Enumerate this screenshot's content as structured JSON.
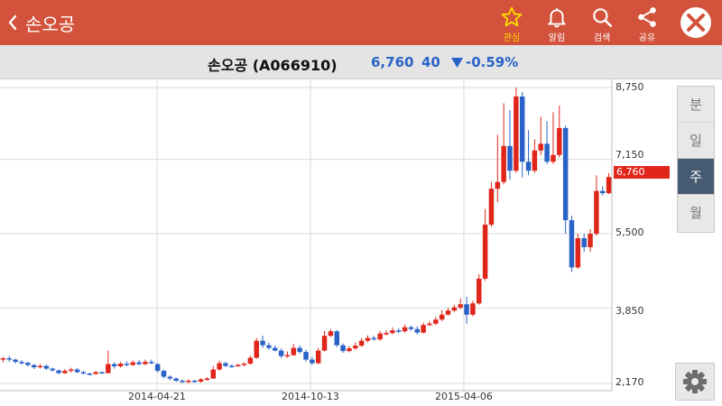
{
  "header": {
    "title": "손오공",
    "actions": [
      {
        "icon": "star-icon",
        "label": "관심",
        "active": true
      },
      {
        "icon": "bell-icon",
        "label": "알림",
        "active": false
      },
      {
        "icon": "search-icon",
        "label": "검색",
        "active": false
      },
      {
        "icon": "share-icon",
        "label": "공유",
        "active": false
      }
    ]
  },
  "stock": {
    "name": "손오공 (A066910)",
    "price": "6,760",
    "change": "40",
    "change_pct": "-0.59%",
    "color_down": "#2a63c7",
    "color_up": "#e0261b"
  },
  "periods": [
    "분",
    "일",
    "주",
    "월"
  ],
  "active_period": "주",
  "chart_data": {
    "type": "candlestick",
    "y_ticks": [
      "8,750",
      "7,150",
      "5,500",
      "3,850",
      "2,170"
    ],
    "x_ticks": [
      "2014-04-21",
      "2014-10-13",
      "2015-04-06"
    ],
    "ylim": [
      2170,
      8750
    ],
    "current_price_label": "6,760",
    "grid": true,
    "candles": [
      [
        2700,
        2730,
        2640,
        2760
      ],
      [
        2730,
        2700,
        2650,
        2780
      ],
      [
        2700,
        2650,
        2610,
        2720
      ],
      [
        2650,
        2630,
        2590,
        2690
      ],
      [
        2630,
        2580,
        2550,
        2650
      ],
      [
        2580,
        2530,
        2490,
        2600
      ],
      [
        2530,
        2560,
        2500,
        2600
      ],
      [
        2560,
        2500,
        2470,
        2590
      ],
      [
        2500,
        2460,
        2430,
        2520
      ],
      [
        2460,
        2400,
        2380,
        2480
      ],
      [
        2400,
        2450,
        2380,
        2490
      ],
      [
        2450,
        2480,
        2410,
        2520
      ],
      [
        2480,
        2420,
        2400,
        2510
      ],
      [
        2420,
        2390,
        2370,
        2450
      ],
      [
        2390,
        2380,
        2350,
        2410
      ],
      [
        2380,
        2420,
        2360,
        2450
      ],
      [
        2420,
        2400,
        2380,
        2440
      ],
      [
        2400,
        2600,
        2390,
        2900
      ],
      [
        2600,
        2550,
        2500,
        2640
      ],
      [
        2550,
        2610,
        2520,
        2650
      ],
      [
        2610,
        2580,
        2550,
        2660
      ],
      [
        2580,
        2640,
        2560,
        2680
      ],
      [
        2640,
        2600,
        2570,
        2690
      ],
      [
        2600,
        2650,
        2580,
        2700
      ],
      [
        2650,
        2640,
        2600,
        2700
      ],
      [
        2600,
        2450,
        2420,
        2620
      ],
      [
        2450,
        2320,
        2280,
        2480
      ],
      [
        2320,
        2280,
        2240,
        2350
      ],
      [
        2280,
        2230,
        2200,
        2300
      ],
      [
        2230,
        2200,
        2180,
        2260
      ],
      [
        2200,
        2230,
        2180,
        2260
      ],
      [
        2230,
        2210,
        2190,
        2250
      ],
      [
        2210,
        2260,
        2190,
        2290
      ],
      [
        2260,
        2280,
        2230,
        2310
      ],
      [
        2280,
        2480,
        2270,
        2560
      ],
      [
        2480,
        2620,
        2460,
        2680
      ],
      [
        2620,
        2560,
        2530,
        2650
      ],
      [
        2560,
        2550,
        2520,
        2600
      ],
      [
        2550,
        2580,
        2540,
        2610
      ],
      [
        2580,
        2610,
        2550,
        2640
      ],
      [
        2610,
        2740,
        2590,
        2790
      ],
      [
        2740,
        3120,
        2720,
        3180
      ],
      [
        3120,
        3020,
        2960,
        3230
      ],
      [
        3020,
        2960,
        2920,
        3080
      ],
      [
        2960,
        2900,
        2880,
        3020
      ],
      [
        2900,
        2780,
        2740,
        2950
      ],
      [
        2780,
        2800,
        2740,
        2880
      ],
      [
        2800,
        2960,
        2780,
        3050
      ],
      [
        2960,
        2870,
        2830,
        3020
      ],
      [
        2870,
        2700,
        2660,
        2920
      ],
      [
        2700,
        2620,
        2580,
        2760
      ],
      [
        2620,
        2900,
        2600,
        2960
      ],
      [
        2900,
        3230,
        2880,
        3340
      ],
      [
        3230,
        3330,
        3200,
        3380
      ],
      [
        3330,
        3020,
        2980,
        3360
      ],
      [
        3020,
        2890,
        2850,
        3060
      ],
      [
        2890,
        2950,
        2860,
        3000
      ],
      [
        2950,
        3010,
        2920,
        3080
      ],
      [
        3010,
        3120,
        2980,
        3180
      ],
      [
        3120,
        3180,
        3080,
        3240
      ],
      [
        3180,
        3150,
        3120,
        3230
      ],
      [
        3150,
        3280,
        3120,
        3340
      ],
      [
        3280,
        3290,
        3240,
        3350
      ],
      [
        3290,
        3350,
        3260,
        3420
      ],
      [
        3350,
        3330,
        3290,
        3400
      ],
      [
        3330,
        3420,
        3300,
        3480
      ],
      [
        3420,
        3380,
        3340,
        3460
      ],
      [
        3380,
        3300,
        3260,
        3440
      ],
      [
        3300,
        3470,
        3280,
        3520
      ],
      [
        3470,
        3500,
        3440,
        3550
      ],
      [
        3500,
        3590,
        3470,
        3650
      ],
      [
        3590,
        3700,
        3560,
        3800
      ],
      [
        3700,
        3790,
        3680,
        3850
      ],
      [
        3790,
        3860,
        3760,
        3920
      ],
      [
        3860,
        3930,
        3820,
        4060
      ],
      [
        3930,
        3700,
        3500,
        4100
      ],
      [
        3700,
        3950,
        3660,
        4010
      ],
      [
        3950,
        4500,
        3920,
        4600
      ],
      [
        4500,
        5700,
        4450,
        6050
      ],
      [
        5700,
        6500,
        5650,
        6650
      ],
      [
        6500,
        6650,
        6200,
        7700
      ],
      [
        6650,
        7450,
        6600,
        8400
      ],
      [
        7450,
        6900,
        6700,
        8250
      ],
      [
        6900,
        8550,
        6850,
        8750
      ],
      [
        8550,
        7100,
        6750,
        8650
      ],
      [
        7100,
        6900,
        6800,
        7800
      ],
      [
        6900,
        7350,
        6850,
        7600
      ],
      [
        7350,
        7500,
        7250,
        8100
      ],
      [
        7500,
        7100,
        7050,
        8000
      ],
      [
        7100,
        7250,
        7050,
        8200
      ],
      [
        7250,
        7850,
        7200,
        8350
      ],
      [
        7850,
        5800,
        5500,
        7900
      ],
      [
        5800,
        4750,
        4650,
        5900
      ],
      [
        4750,
        5400,
        4720,
        5500
      ],
      [
        5400,
        5200,
        5100,
        5500
      ],
      [
        5200,
        5500,
        5100,
        5600
      ],
      [
        5500,
        6450,
        5450,
        6800
      ],
      [
        6450,
        6400,
        6350,
        6550
      ],
      [
        6400,
        6760,
        6380,
        6850
      ]
    ]
  }
}
